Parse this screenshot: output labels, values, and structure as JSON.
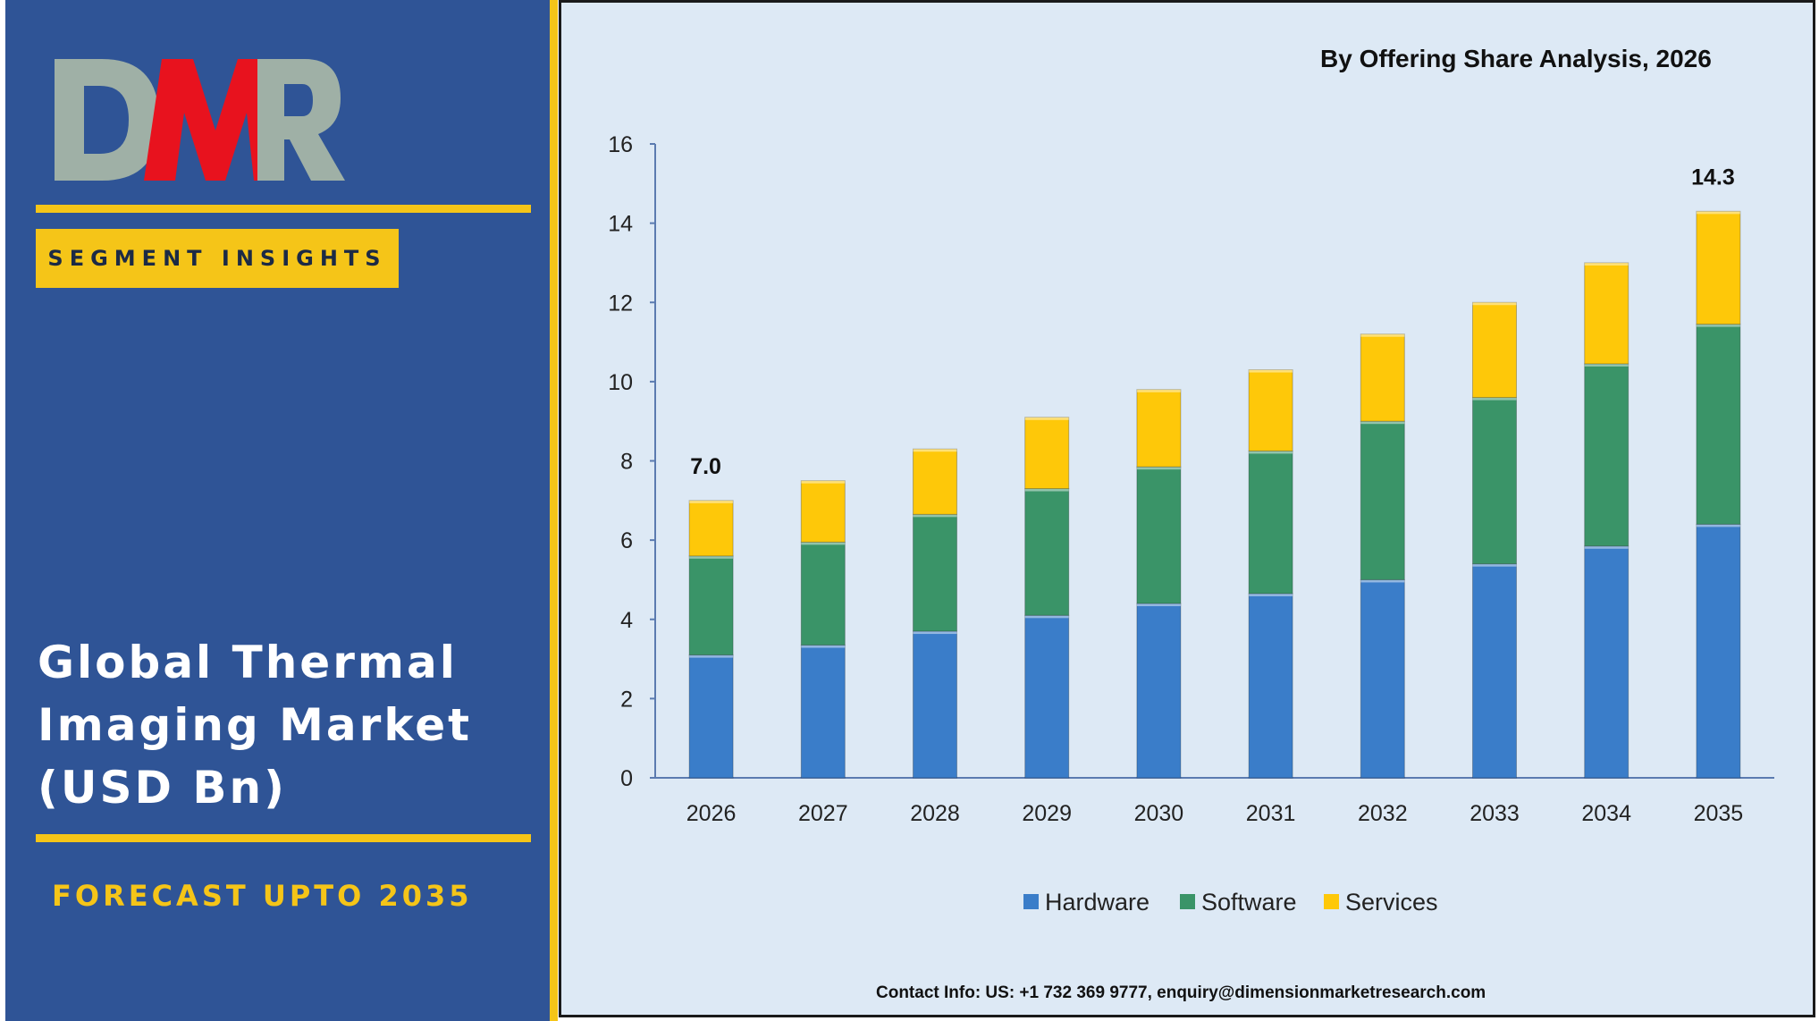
{
  "brand": {
    "logo_text": "DMR",
    "badge": "SEGMENT INSIGHTS"
  },
  "headline": {
    "line1": "Global Thermal",
    "line2": "Imaging Market",
    "line3": "(USD Bn)"
  },
  "forecast_label": "FORECAST UPTO 2035",
  "contact": "Contact Info: US: +1 732 369 9777, enquiry@dimensionmarketresearch.com",
  "colors": {
    "panel_blue": "#2f5496",
    "accent_yellow": "#f5c518",
    "chart_bg": "#dde9f5",
    "hardware": "#3a7dc9",
    "software": "#3a9468",
    "services": "#fec809"
  },
  "chart_data": {
    "type": "bar",
    "stacked": true,
    "title": "By Offering Share Analysis, 2026",
    "xlabel": "",
    "ylabel": "",
    "ylim": [
      0,
      16
    ],
    "yticks": [
      0,
      2,
      4,
      6,
      8,
      10,
      12,
      14,
      16
    ],
    "categories": [
      "2026",
      "2027",
      "2028",
      "2029",
      "2030",
      "2031",
      "2032",
      "2033",
      "2034",
      "2035"
    ],
    "series": [
      {
        "name": "Hardware",
        "color": "#3a7dc9",
        "values": [
          3.1,
          3.35,
          3.7,
          4.1,
          4.4,
          4.65,
          5.0,
          5.4,
          5.85,
          6.4
        ]
      },
      {
        "name": "Software",
        "color": "#3a9468",
        "values": [
          2.5,
          2.6,
          2.95,
          3.2,
          3.45,
          3.6,
          4.0,
          4.2,
          4.6,
          5.05
        ]
      },
      {
        "name": "Services",
        "color": "#fec809",
        "values": [
          1.4,
          1.55,
          1.65,
          1.8,
          1.95,
          2.05,
          2.2,
          2.4,
          2.55,
          2.85
        ]
      }
    ],
    "annotations": [
      {
        "category": "2026",
        "label": "7.0"
      },
      {
        "category": "2035",
        "label": "14.3"
      }
    ],
    "legend": "bottom",
    "grid": false
  }
}
